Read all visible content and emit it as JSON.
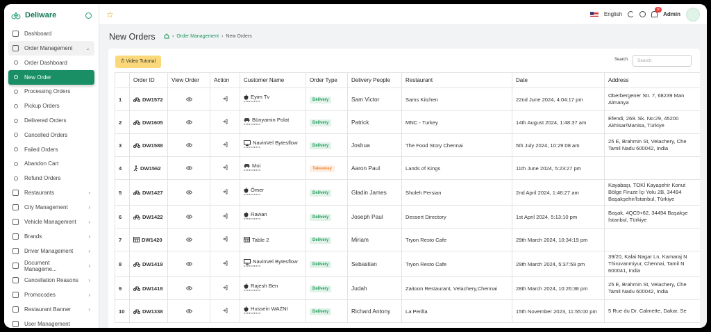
{
  "sidebar": {
    "brand": "Deliware",
    "menu_top": [
      "Dashboard",
      "Order Management"
    ],
    "submenu": [
      "Order Dashboard",
      "New Order",
      "Processing Orders",
      "Pickup Orders",
      "Delivered Orders",
      "Cancelled Orders",
      "Failed Orders",
      "Abandon Cart",
      "Refund Orders"
    ],
    "menu": [
      "Restaurants",
      "City Management",
      "Vehicle Management",
      "Brands",
      "Driver Management",
      "Document Manageme...",
      "Cancellation Reasons",
      "Promocodes",
      "Restaurant Banner",
      "User Management"
    ]
  },
  "topbar": {
    "language": "English",
    "notifications": "10",
    "user": "Admin"
  },
  "header": {
    "title": "New Orders",
    "breadcrumb": [
      "Order Management",
      "New Orders"
    ]
  },
  "toolbar": {
    "button": "Video Tutorial",
    "search_label": "Search",
    "search_placeholder": "Search"
  },
  "table": {
    "headers": [
      "Order ID",
      "View Order",
      "Action",
      "Customer Name",
      "Order Type",
      "Delivery People",
      "Restaurant",
      "Date",
      "Address"
    ],
    "rows": [
      {
        "no": 1,
        "order_id": "DW1572",
        "customer": "Eyim Tv",
        "phone": "**********",
        "type": "Delivery",
        "type_color": "#1e9e5a",
        "driver": "Sam Victor",
        "restaurant": "Sams Kitchen",
        "date": "22nd June 2024, 4:04:17 pm",
        "address": [
          "Oberbergener Str. 7, 68239 Man",
          "Almanya"
        ]
      },
      {
        "no": 2,
        "order_id": "DW1605",
        "customer": "Bünyamin Polat",
        "phone": "**********",
        "type": "Delivery",
        "type_color": "#1e9e5a",
        "driver": "Patrick",
        "restaurant": "MNC - Turkey",
        "date": "14th August 2024, 1:48:37 am",
        "address": [
          "Efendi, 269. Sk. No:29, 45200",
          "Akhisar/Manisa, Türkiye"
        ]
      },
      {
        "no": 3,
        "order_id": "DW1588",
        "customer": "NavinVel Bytesflow",
        "phone": "**********",
        "type": "Delivery",
        "type_color": "#1e9e5a",
        "driver": "Joshua",
        "restaurant": "The Food Story Chennai",
        "date": "5th July 2024, 10:29:08 am",
        "address": [
          "25 E, Brahmin St, Velachery, Che",
          "Tamil Nadu 600042, India"
        ]
      },
      {
        "no": 4,
        "order_id": "DW1562",
        "customer": "Moi",
        "phone": "**********",
        "type": "Takeaway",
        "type_color": "#f08a3c",
        "driver": "Aaron Paul",
        "restaurant": "Lands of Kings",
        "date": "11th June 2024, 5:23:27 pm",
        "address": []
      },
      {
        "no": 5,
        "order_id": "DW1427",
        "customer": "Ömer",
        "phone": "**********",
        "type": "Delivery",
        "type_color": "#1e9e5a",
        "driver": "Gladin James",
        "restaurant": "Sholeh Persian",
        "date": "2nd April 2024, 1:46:27 am",
        "address": [
          "Kayabaşı, TOKİ Kayaşehir Konut",
          "Bölge Firuze İçi Yolu 2B, 34494",
          "Başakşehir/İstanbul, Türkiye"
        ]
      },
      {
        "no": 6,
        "order_id": "DW1422",
        "customer": "Rawan",
        "phone": "**********",
        "type": "Delivery",
        "type_color": "#1e9e5a",
        "driver": "Joseph Paul",
        "restaurant": "Dessert Directory",
        "date": "1st April 2024, 5:13:10 pm",
        "address": [
          "Başak, 4QC9+62, 34494 Başakşe",
          "İstanbul, Türkiye"
        ]
      },
      {
        "no": 7,
        "order_id": "DW1420",
        "customer": "Table 2",
        "type": "Delivery",
        "type_color": "#1e9e5a",
        "driver": "Miriam",
        "restaurant": "Tryon Resto Cafe",
        "date": "29th March 2024, 10:34:19 pm",
        "address": []
      },
      {
        "no": 8,
        "order_id": "DW1419",
        "customer": "NavinVel Bytesflow",
        "phone": "**********",
        "type": "Delivery",
        "type_color": "#1e9e5a",
        "driver": "Sebastian",
        "restaurant": "Tryon Resto Cafe",
        "date": "29th March 2024, 5:37:59 pm",
        "address": [
          "39/20, Kalai Nagar Ln, Kamaraj N",
          "Thiruvanmiyur, Chennai, Tamil N",
          "600041, India"
        ]
      },
      {
        "no": 9,
        "order_id": "DW1418",
        "customer": "Rajesh Ben",
        "phone": "**********",
        "type": "Delivery",
        "type_color": "#1e9e5a",
        "driver": "Judah",
        "restaurant": "Zaitoon Restaurant, Velachery,Chennai",
        "date": "28th March 2024, 10:26:38 pm",
        "address": [
          "25 E, Brahmin St, Velachery, Che",
          "Tamil Nadu 600042, India"
        ]
      },
      {
        "no": 10,
        "order_id": "DW1338",
        "customer": "Hussein WAZNI",
        "phone": "**********",
        "type": "Delivery",
        "type_color": "#1e9e5a",
        "driver": "Richard Antony",
        "restaurant": "La Perilla",
        "date": "15th November 2023, 11:55:00 pm",
        "address": [
          "5 Rue du Dr. Calmette, Dakar, Se"
        ]
      }
    ]
  }
}
